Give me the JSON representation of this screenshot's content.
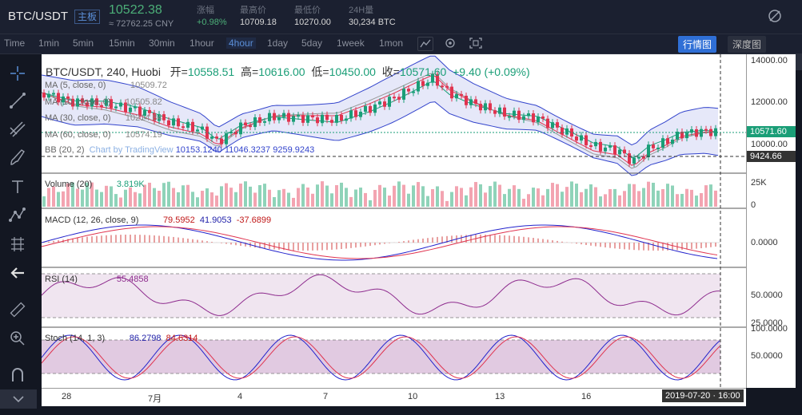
{
  "header": {
    "pair": "BTC/USDT",
    "badge": "主板",
    "price": "10522.38",
    "cny": "≈ 72762.25 CNY",
    "stats": [
      {
        "label": "涨幅",
        "value": "+0.98%",
        "green": true
      },
      {
        "label": "最高价",
        "value": "10709.18",
        "green": false
      },
      {
        "label": "最低价",
        "value": "10270.00",
        "green": false
      },
      {
        "label": "24H量",
        "value": "30,234 BTC",
        "green": false
      }
    ]
  },
  "timeframes": [
    "Time",
    "1min",
    "5min",
    "15min",
    "30min",
    "1hour",
    "4hour",
    "1day",
    "5day",
    "1week",
    "1mon"
  ],
  "active_timeframe": "4hour",
  "view_buttons": {
    "market": "行情图",
    "depth": "深度图"
  },
  "ohlc": {
    "symbol": "BTC/USDT, 240, Huobi",
    "open_label": "开=",
    "open": "10558.51",
    "high_label": "高=",
    "high": "10616.00",
    "low_label": "低=",
    "low": "10450.00",
    "close_label": "收=",
    "close": "10571.60",
    "change": "+9.40 (+0.09%)"
  },
  "indicators": [
    {
      "label": "MA (5, close, 0)",
      "value": "10509.72",
      "color": "#8a8f9c"
    },
    {
      "label": "MA (10, close, 0)",
      "value": "10505.82",
      "color": "#8a8f9c"
    },
    {
      "label": "MA (30, close, 0)",
      "value": "10214.84",
      "color": "#8a8f9c"
    },
    {
      "label": "MA (60, close, 0)",
      "value": "10574.19",
      "color": "#8a8f9c"
    },
    {
      "label": "BB (20, 2)",
      "value": "10153.1240  11046.3237  9259.9243",
      "color": "#3344cc"
    }
  ],
  "watermark": "Chart by TradingView",
  "volume": {
    "label": "Volume (20)",
    "value": "3.819K"
  },
  "macd": {
    "label": "MACD (12, 26, close, 9)",
    "v1": "79.5952",
    "v2": "41.9053",
    "v3": "-37.6899"
  },
  "rsi": {
    "label": "RSI (14)",
    "value": "55.4858"
  },
  "stoch": {
    "label": "Stoch (14, 1, 3)",
    "v1": "86.2798",
    "v2": "84.6314"
  },
  "price_axis": [
    "14000.00",
    "12000.00",
    "10000.00"
  ],
  "last_price_tag": "10571.60",
  "cross_price_tag": "9424.66",
  "vol_axis": [
    "25K",
    "0"
  ],
  "macd_axis": [
    "0.0000"
  ],
  "rsi_axis": [
    "50.0000",
    "25.0000"
  ],
  "stoch_axis": [
    "100.0000",
    "50.0000"
  ],
  "x_axis": [
    "28",
    "7月",
    "4",
    "7",
    "10",
    "13",
    "16"
  ],
  "crosshair_date": "2019-07-20 · 16:00",
  "colors": {
    "up": "#1a9e77",
    "down": "#e0334f",
    "bb": "#3344cc",
    "accent": "#2f6fd6"
  }
}
